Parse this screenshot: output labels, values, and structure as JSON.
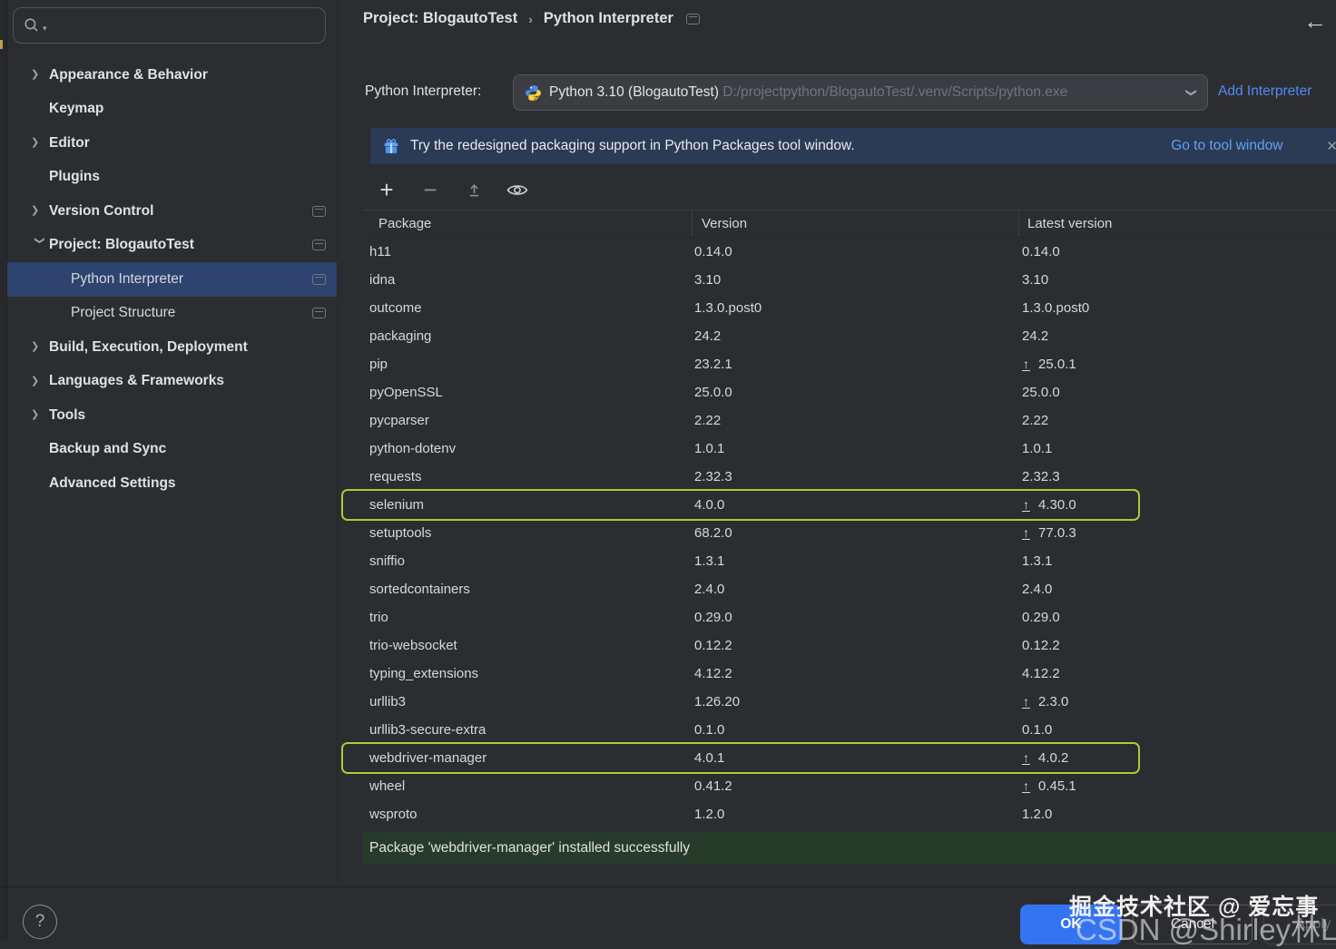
{
  "search": {
    "placeholder": ""
  },
  "sidebar": {
    "items": [
      {
        "label": "Appearance & Behavior",
        "chevron": "right",
        "level": 1,
        "bold": true,
        "icon": false,
        "selected": false
      },
      {
        "label": "Keymap",
        "chevron": null,
        "level": 1,
        "bold": true,
        "icon": false,
        "selected": false
      },
      {
        "label": "Editor",
        "chevron": "right",
        "level": 1,
        "bold": true,
        "icon": false,
        "selected": false
      },
      {
        "label": "Plugins",
        "chevron": null,
        "level": 1,
        "bold": true,
        "icon": false,
        "selected": false
      },
      {
        "label": "Version Control",
        "chevron": "right",
        "level": 1,
        "bold": true,
        "icon": true,
        "selected": false
      },
      {
        "label": "Project: BlogautoTest",
        "chevron": "down",
        "level": 1,
        "bold": true,
        "icon": true,
        "selected": false
      },
      {
        "label": "Python Interpreter",
        "chevron": null,
        "level": 2,
        "bold": false,
        "icon": true,
        "selected": true
      },
      {
        "label": "Project Structure",
        "chevron": null,
        "level": 2,
        "bold": false,
        "icon": true,
        "selected": false
      },
      {
        "label": "Build, Execution, Deployment",
        "chevron": "right",
        "level": 1,
        "bold": true,
        "icon": false,
        "selected": false
      },
      {
        "label": "Languages & Frameworks",
        "chevron": "right",
        "level": 1,
        "bold": true,
        "icon": false,
        "selected": false
      },
      {
        "label": "Tools",
        "chevron": "right",
        "level": 1,
        "bold": true,
        "icon": false,
        "selected": false
      },
      {
        "label": "Backup and Sync",
        "chevron": null,
        "level": 1,
        "bold": true,
        "icon": false,
        "selected": false
      },
      {
        "label": "Advanced Settings",
        "chevron": null,
        "level": 1,
        "bold": true,
        "icon": false,
        "selected": false
      }
    ]
  },
  "breadcrumb": {
    "project": "Project: BlogautoTest",
    "separator": "›",
    "page": "Python Interpreter"
  },
  "interpreter": {
    "label": "Python Interpreter:",
    "name": "Python 3.10 (BlogautoTest)",
    "path": "D:/projectpython/BlogautoTest/.venv/Scripts/python.exe",
    "add_link": "Add Interpreter"
  },
  "banner": {
    "text": "Try the redesigned packaging support in Python Packages tool window.",
    "link": "Go to tool window"
  },
  "toolbar": {
    "icons": [
      "add-package",
      "remove-package",
      "upgrade-package",
      "show-early-releases"
    ]
  },
  "table": {
    "columns": [
      "Package",
      "Version",
      "Latest version"
    ],
    "rows": [
      {
        "name": "h11",
        "version": "0.14.0",
        "latest": "0.14.0",
        "upgrade": false,
        "highlighted": false
      },
      {
        "name": "idna",
        "version": "3.10",
        "latest": "3.10",
        "upgrade": false,
        "highlighted": false
      },
      {
        "name": "outcome",
        "version": "1.3.0.post0",
        "latest": "1.3.0.post0",
        "upgrade": false,
        "highlighted": false
      },
      {
        "name": "packaging",
        "version": "24.2",
        "latest": "24.2",
        "upgrade": false,
        "highlighted": false
      },
      {
        "name": "pip",
        "version": "23.2.1",
        "latest": "25.0.1",
        "upgrade": true,
        "highlighted": false
      },
      {
        "name": "pyOpenSSL",
        "version": "25.0.0",
        "latest": "25.0.0",
        "upgrade": false,
        "highlighted": false
      },
      {
        "name": "pycparser",
        "version": "2.22",
        "latest": "2.22",
        "upgrade": false,
        "highlighted": false
      },
      {
        "name": "python-dotenv",
        "version": "1.0.1",
        "latest": "1.0.1",
        "upgrade": false,
        "highlighted": false
      },
      {
        "name": "requests",
        "version": "2.32.3",
        "latest": "2.32.3",
        "upgrade": false,
        "highlighted": false
      },
      {
        "name": "selenium",
        "version": "4.0.0",
        "latest": "4.30.0",
        "upgrade": true,
        "highlighted": true
      },
      {
        "name": "setuptools",
        "version": "68.2.0",
        "latest": "77.0.3",
        "upgrade": true,
        "highlighted": false
      },
      {
        "name": "sniffio",
        "version": "1.3.1",
        "latest": "1.3.1",
        "upgrade": false,
        "highlighted": false
      },
      {
        "name": "sortedcontainers",
        "version": "2.4.0",
        "latest": "2.4.0",
        "upgrade": false,
        "highlighted": false
      },
      {
        "name": "trio",
        "version": "0.29.0",
        "latest": "0.29.0",
        "upgrade": false,
        "highlighted": false
      },
      {
        "name": "trio-websocket",
        "version": "0.12.2",
        "latest": "0.12.2",
        "upgrade": false,
        "highlighted": false
      },
      {
        "name": "typing_extensions",
        "version": "4.12.2",
        "latest": "4.12.2",
        "upgrade": false,
        "highlighted": false
      },
      {
        "name": "urllib3",
        "version": "1.26.20",
        "latest": "2.3.0",
        "upgrade": true,
        "highlighted": false
      },
      {
        "name": "urllib3-secure-extra",
        "version": "0.1.0",
        "latest": "0.1.0",
        "upgrade": false,
        "highlighted": false
      },
      {
        "name": "webdriver-manager",
        "version": "4.0.1",
        "latest": "4.0.2",
        "upgrade": true,
        "highlighted": true
      },
      {
        "name": "wheel",
        "version": "0.41.2",
        "latest": "0.45.1",
        "upgrade": true,
        "highlighted": false
      },
      {
        "name": "wsproto",
        "version": "1.2.0",
        "latest": "1.2.0",
        "upgrade": false,
        "highlighted": false
      }
    ]
  },
  "status": {
    "message": "Package 'webdriver-manager' installed successfully"
  },
  "footer": {
    "ok": "OK",
    "cancel": "Cancel",
    "apply": "Apply"
  },
  "watermark": {
    "line1": "掘金技术社区 @ 爱忘事",
    "line2": "CSDN @Shirley林Love"
  },
  "colors": {
    "accent_blue": "#3574f0",
    "link_blue": "#548af7",
    "highlight_green": "#a6ce39",
    "selection_blue": "#2e436e",
    "success_green_bg": "#273b2a"
  }
}
